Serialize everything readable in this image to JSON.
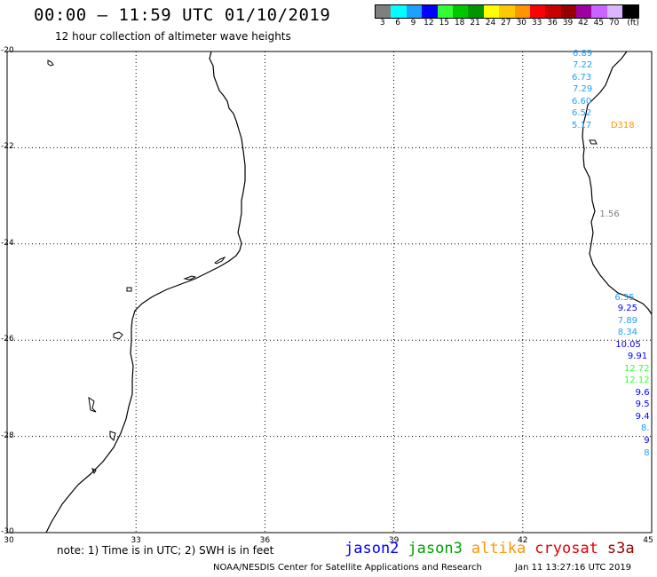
{
  "title": "00:00 – 11:59 UTC 01/10/2019",
  "subtitle": "12 hour collection of altimeter wave heights",
  "legend": {
    "colors": [
      "#7f7f7f",
      "#00ffff",
      "#1ea0ff",
      "#0000ff",
      "#32ff32",
      "#00c800",
      "#009600",
      "#ffff00",
      "#ffc800",
      "#ff9600",
      "#ff0000",
      "#c80000",
      "#960000",
      "#a000a0",
      "#c864ff",
      "#dcb4ff",
      "#000000"
    ],
    "labels": [
      "3",
      "6",
      "9",
      "12",
      "15",
      "18",
      "21",
      "24",
      "27",
      "30",
      "33",
      "36",
      "39",
      "42",
      "45",
      "70",
      "(ft)"
    ]
  },
  "axes": {
    "lat_labels": [
      "-20",
      "-22",
      "-24",
      "-26",
      "-28",
      "-30"
    ],
    "lon_labels": [
      "30",
      "33",
      "36",
      "39",
      "42",
      "45"
    ],
    "lat_range": [
      -30,
      -20
    ],
    "lon_range": [
      30,
      45
    ],
    "grid": "dotted"
  },
  "observations": [
    {
      "lat": -20.05,
      "lon": 43.62,
      "value": "6.89",
      "color": "#1ea0ff"
    },
    {
      "lat": -20.3,
      "lon": 43.62,
      "value": "7.22",
      "color": "#1ea0ff"
    },
    {
      "lat": -20.55,
      "lon": 43.6,
      "value": "6.73",
      "color": "#1ea0ff"
    },
    {
      "lat": -20.8,
      "lon": 43.62,
      "value": "7.29",
      "color": "#1ea0ff"
    },
    {
      "lat": -21.05,
      "lon": 43.6,
      "value": "6.60",
      "color": "#1ea0ff"
    },
    {
      "lat": -21.3,
      "lon": 43.6,
      "value": "6.52",
      "color": "#1ea0ff"
    },
    {
      "lat": -21.55,
      "lon": 43.6,
      "value": "5.17",
      "color": "#1ea0ff"
    },
    {
      "lat": -21.55,
      "lon": 44.6,
      "value": "D318",
      "color": "#ff9600"
    },
    {
      "lat": -23.4,
      "lon": 44.25,
      "value": "1.56",
      "color": "#7f7f7f"
    },
    {
      "lat": -25.12,
      "lon": 44.6,
      "value": "6.35",
      "color": "#1ea0ff"
    },
    {
      "lat": -25.35,
      "lon": 44.67,
      "value": "9.25",
      "color": "#0000ff"
    },
    {
      "lat": -25.6,
      "lon": 44.67,
      "value": "7.89",
      "color": "#1ea0ff"
    },
    {
      "lat": -25.85,
      "lon": 44.67,
      "value": "8.34",
      "color": "#1ea0ff"
    },
    {
      "lat": -26.1,
      "lon": 44.75,
      "value": "10.05",
      "color": "#0000ff"
    },
    {
      "lat": -26.35,
      "lon": 44.9,
      "value": "9.91",
      "color": "#0000ff"
    },
    {
      "lat": -26.6,
      "lon": 44.95,
      "value": "12.72",
      "color": "#32ff32"
    },
    {
      "lat": -26.85,
      "lon": 44.95,
      "value": "12.12",
      "color": "#32ff32"
    },
    {
      "lat": -27.1,
      "lon": 44.95,
      "value": "9.6",
      "color": "#0000ff"
    },
    {
      "lat": -27.35,
      "lon": 44.95,
      "value": "9.5",
      "color": "#0000ff"
    },
    {
      "lat": -27.6,
      "lon": 44.95,
      "value": "9.4",
      "color": "#0000ff"
    },
    {
      "lat": -27.85,
      "lon": 44.95,
      "value": "8.",
      "color": "#1ea0ff"
    },
    {
      "lat": -28.1,
      "lon": 44.95,
      "value": "9",
      "color": "#0000ff"
    },
    {
      "lat": -28.35,
      "lon": 44.95,
      "value": "8",
      "color": "#1ea0ff"
    }
  ],
  "note": "note: 1) Time is in UTC; 2) SWH is in feet",
  "satellites": [
    {
      "name": "jason2",
      "color": "#0000ff"
    },
    {
      "name": "jason3",
      "color": "#00a000"
    },
    {
      "name": "altika",
      "color": "#ff9600"
    },
    {
      "name": "cryosat",
      "color": "#e00000"
    },
    {
      "name": "s3a",
      "color": "#a00000"
    }
  ],
  "footer": {
    "credit": "NOAA/NESDIS Center for Satellite Applications and Research",
    "timestamp": "Jan 11 13:27:16 UTC 2019"
  }
}
